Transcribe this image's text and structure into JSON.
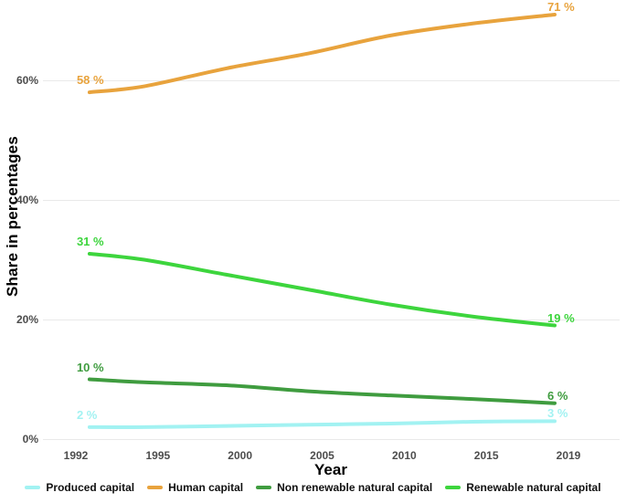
{
  "chart": {
    "y_axis_title": "Share in percentages",
    "x_axis_title": "Year",
    "y_tick_labels": [
      "0%",
      "20%",
      "40%",
      "60%"
    ],
    "x_tick_labels": [
      "1992",
      "1995",
      "2000",
      "2005",
      "2010",
      "2015",
      "2019"
    ]
  },
  "chart_data": {
    "type": "line",
    "x": [
      1993,
      1995,
      2000,
      2005,
      2010,
      2015,
      2019
    ],
    "x_tick_years": [
      1992,
      1995,
      2000,
      2005,
      2010,
      2015,
      2019
    ],
    "y_tick_values": [
      0,
      20,
      40,
      60
    ],
    "ylim": [
      0,
      73.5
    ],
    "grid": "horizontal-only",
    "legend_position": "bottom-center",
    "series": [
      {
        "name": "Produced capital",
        "color": "#a2f2f2",
        "values": [
          2,
          2,
          2.2,
          2.4,
          2.6,
          2.9,
          3
        ],
        "start_label": "2 %",
        "end_label": "3 %"
      },
      {
        "name": "Human capital",
        "color": "#e8a33d",
        "values": [
          58,
          59,
          62,
          64.5,
          67.5,
          69.5,
          71
        ],
        "start_label": "58 %",
        "end_label": "71 %"
      },
      {
        "name": "Non renewable natural capital",
        "color": "#3f9c3f",
        "values": [
          10,
          9.5,
          9,
          8,
          7.3,
          6.7,
          6
        ],
        "start_label": "10 %",
        "end_label": "6 %"
      },
      {
        "name": "Renewable natural capital",
        "color": "#3dd53d",
        "values": [
          31,
          30,
          27.5,
          25,
          22.5,
          20.5,
          19
        ],
        "start_label": "31 %",
        "end_label": "19 %"
      }
    ]
  }
}
